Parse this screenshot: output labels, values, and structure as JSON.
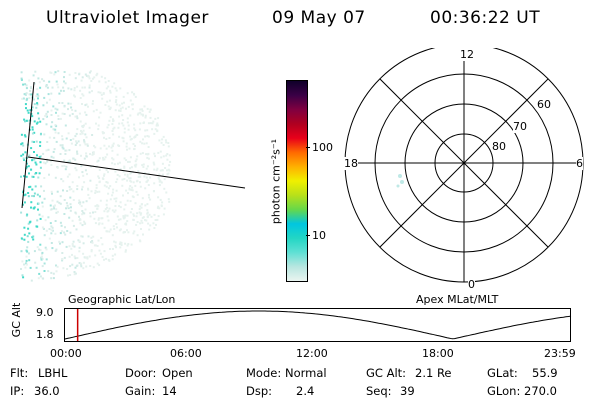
{
  "header": {
    "instrument": "Ultraviolet Imager",
    "date": "09 May 07",
    "time": "00:36:22 UT"
  },
  "colorbar": {
    "label": "photon cm⁻²s⁻¹",
    "ticks": [
      "100",
      "10"
    ]
  },
  "polar_plot": {
    "mlt_labels": {
      "top": "12",
      "left": "18",
      "right": "6",
      "bottom": "0"
    },
    "lat_labels": [
      "60",
      "70",
      "80"
    ]
  },
  "timeline": {
    "ylabel": "GC Alt",
    "yticks": [
      "9.0",
      "1.8"
    ],
    "left_title": "Geographic Lat/Lon",
    "right_title": "Apex  MLat/MLT",
    "xticks": [
      "00:00",
      "06:00",
      "12:00",
      "18:00",
      "23:59"
    ],
    "current_time_fraction": 0.025
  },
  "info": {
    "row1": [
      {
        "label": "Flt:",
        "value": "LBHL"
      },
      {
        "label": "Door:",
        "value": "Open"
      },
      {
        "label": "Mode:",
        "value": "Normal"
      },
      {
        "label": "GC Alt:",
        "value": "2.1 Re"
      },
      {
        "label": "GLat:",
        "value": "55.9"
      }
    ],
    "row2": [
      {
        "label": "IP:",
        "value": "36.0"
      },
      {
        "label": "Gain:",
        "value": "14"
      },
      {
        "label": "Dsp:",
        "value": "2.4"
      },
      {
        "label": "Seq:",
        "value": "39"
      },
      {
        "label": "GLon:",
        "value": "270.0"
      }
    ]
  },
  "colors": {
    "marker": "#cc0000",
    "scale": [
      "#eaf4f0",
      "#b8e6e0",
      "#5fe0d4",
      "#23d6c4",
      "#00c6e0",
      "#66d84a",
      "#b8e01a",
      "#f0f000",
      "#ffb000",
      "#ff6a00",
      "#e8001a",
      "#b00020",
      "#800040",
      "#3a0046",
      "#10002a"
    ]
  }
}
